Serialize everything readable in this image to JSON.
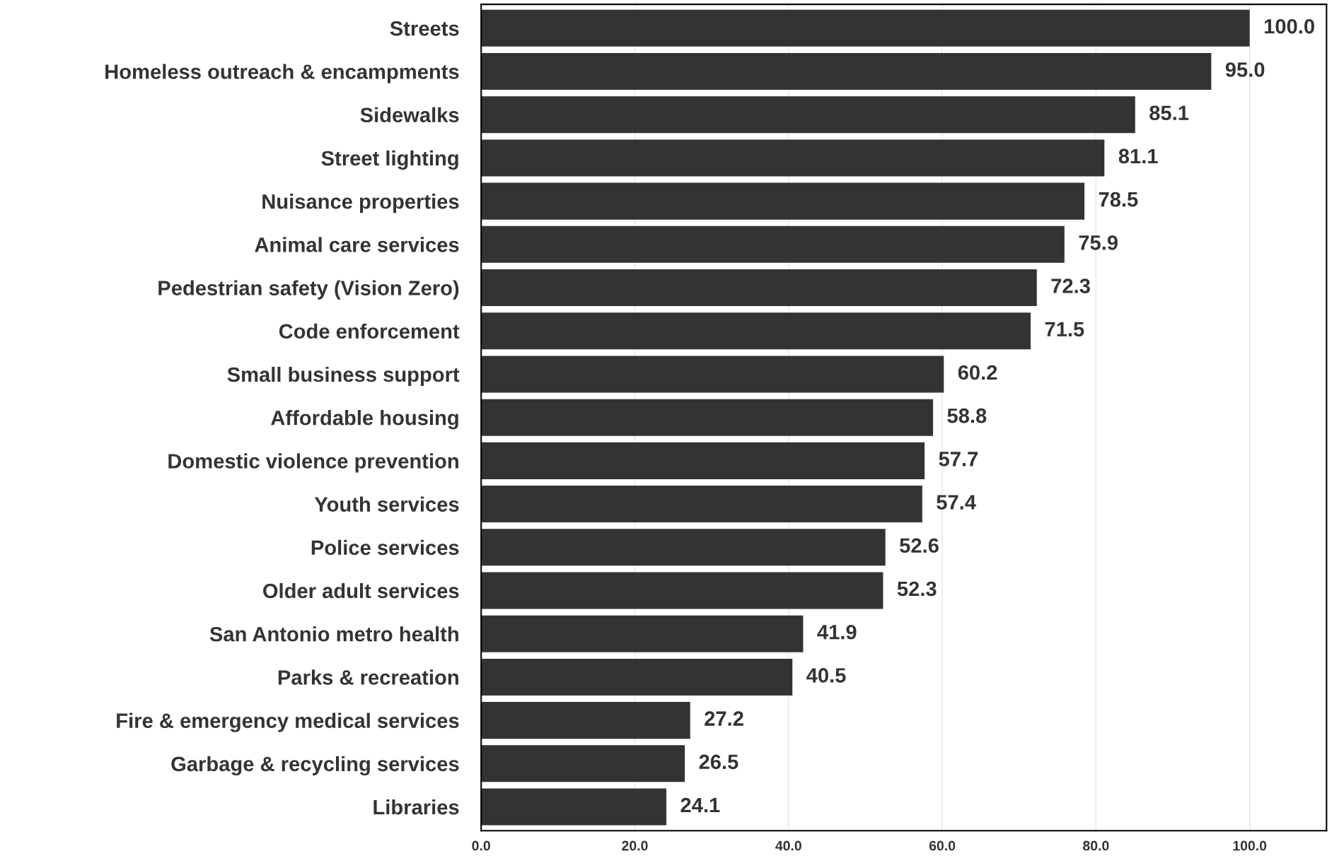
{
  "chart_data": {
    "type": "bar",
    "orientation": "horizontal",
    "categories": [
      "Streets",
      "Homeless outreach & encampments",
      "Sidewalks",
      "Street lighting",
      "Nuisance properties",
      "Animal care services",
      "Pedestrian safety (Vision Zero)",
      "Code enforcement",
      "Small business support",
      "Affordable housing",
      "Domestic violence prevention",
      "Youth services",
      "Police services",
      "Older adult services",
      "San Antonio metro health",
      "Parks & recreation",
      "Fire & emergency medical services",
      "Garbage & recycling services",
      "Libraries"
    ],
    "values": [
      100.0,
      95.0,
      85.1,
      81.1,
      78.5,
      75.9,
      72.3,
      71.5,
      60.2,
      58.8,
      57.7,
      57.4,
      52.6,
      52.3,
      41.9,
      40.5,
      27.2,
      26.5,
      24.1
    ],
    "value_labels": [
      "100.0",
      "95.0",
      "85.1",
      "81.1",
      "78.5",
      "75.9",
      "72.3",
      "71.5",
      "60.2",
      "58.8",
      "57.7",
      "57.4",
      "52.6",
      "52.3",
      "41.9",
      "40.5",
      "27.2",
      "26.5",
      "24.1"
    ],
    "color": "#333333",
    "xlim": [
      0,
      110
    ],
    "xticks": [
      {
        "value": 0,
        "label": "0.0"
      },
      {
        "value": 20,
        "label": "20.0"
      },
      {
        "value": 40,
        "label": "40.0"
      },
      {
        "value": 60,
        "label": "60.0"
      },
      {
        "value": 80,
        "label": "80.0"
      },
      {
        "value": 100,
        "label": "100.0"
      }
    ],
    "grid": "x",
    "legend": false
  }
}
